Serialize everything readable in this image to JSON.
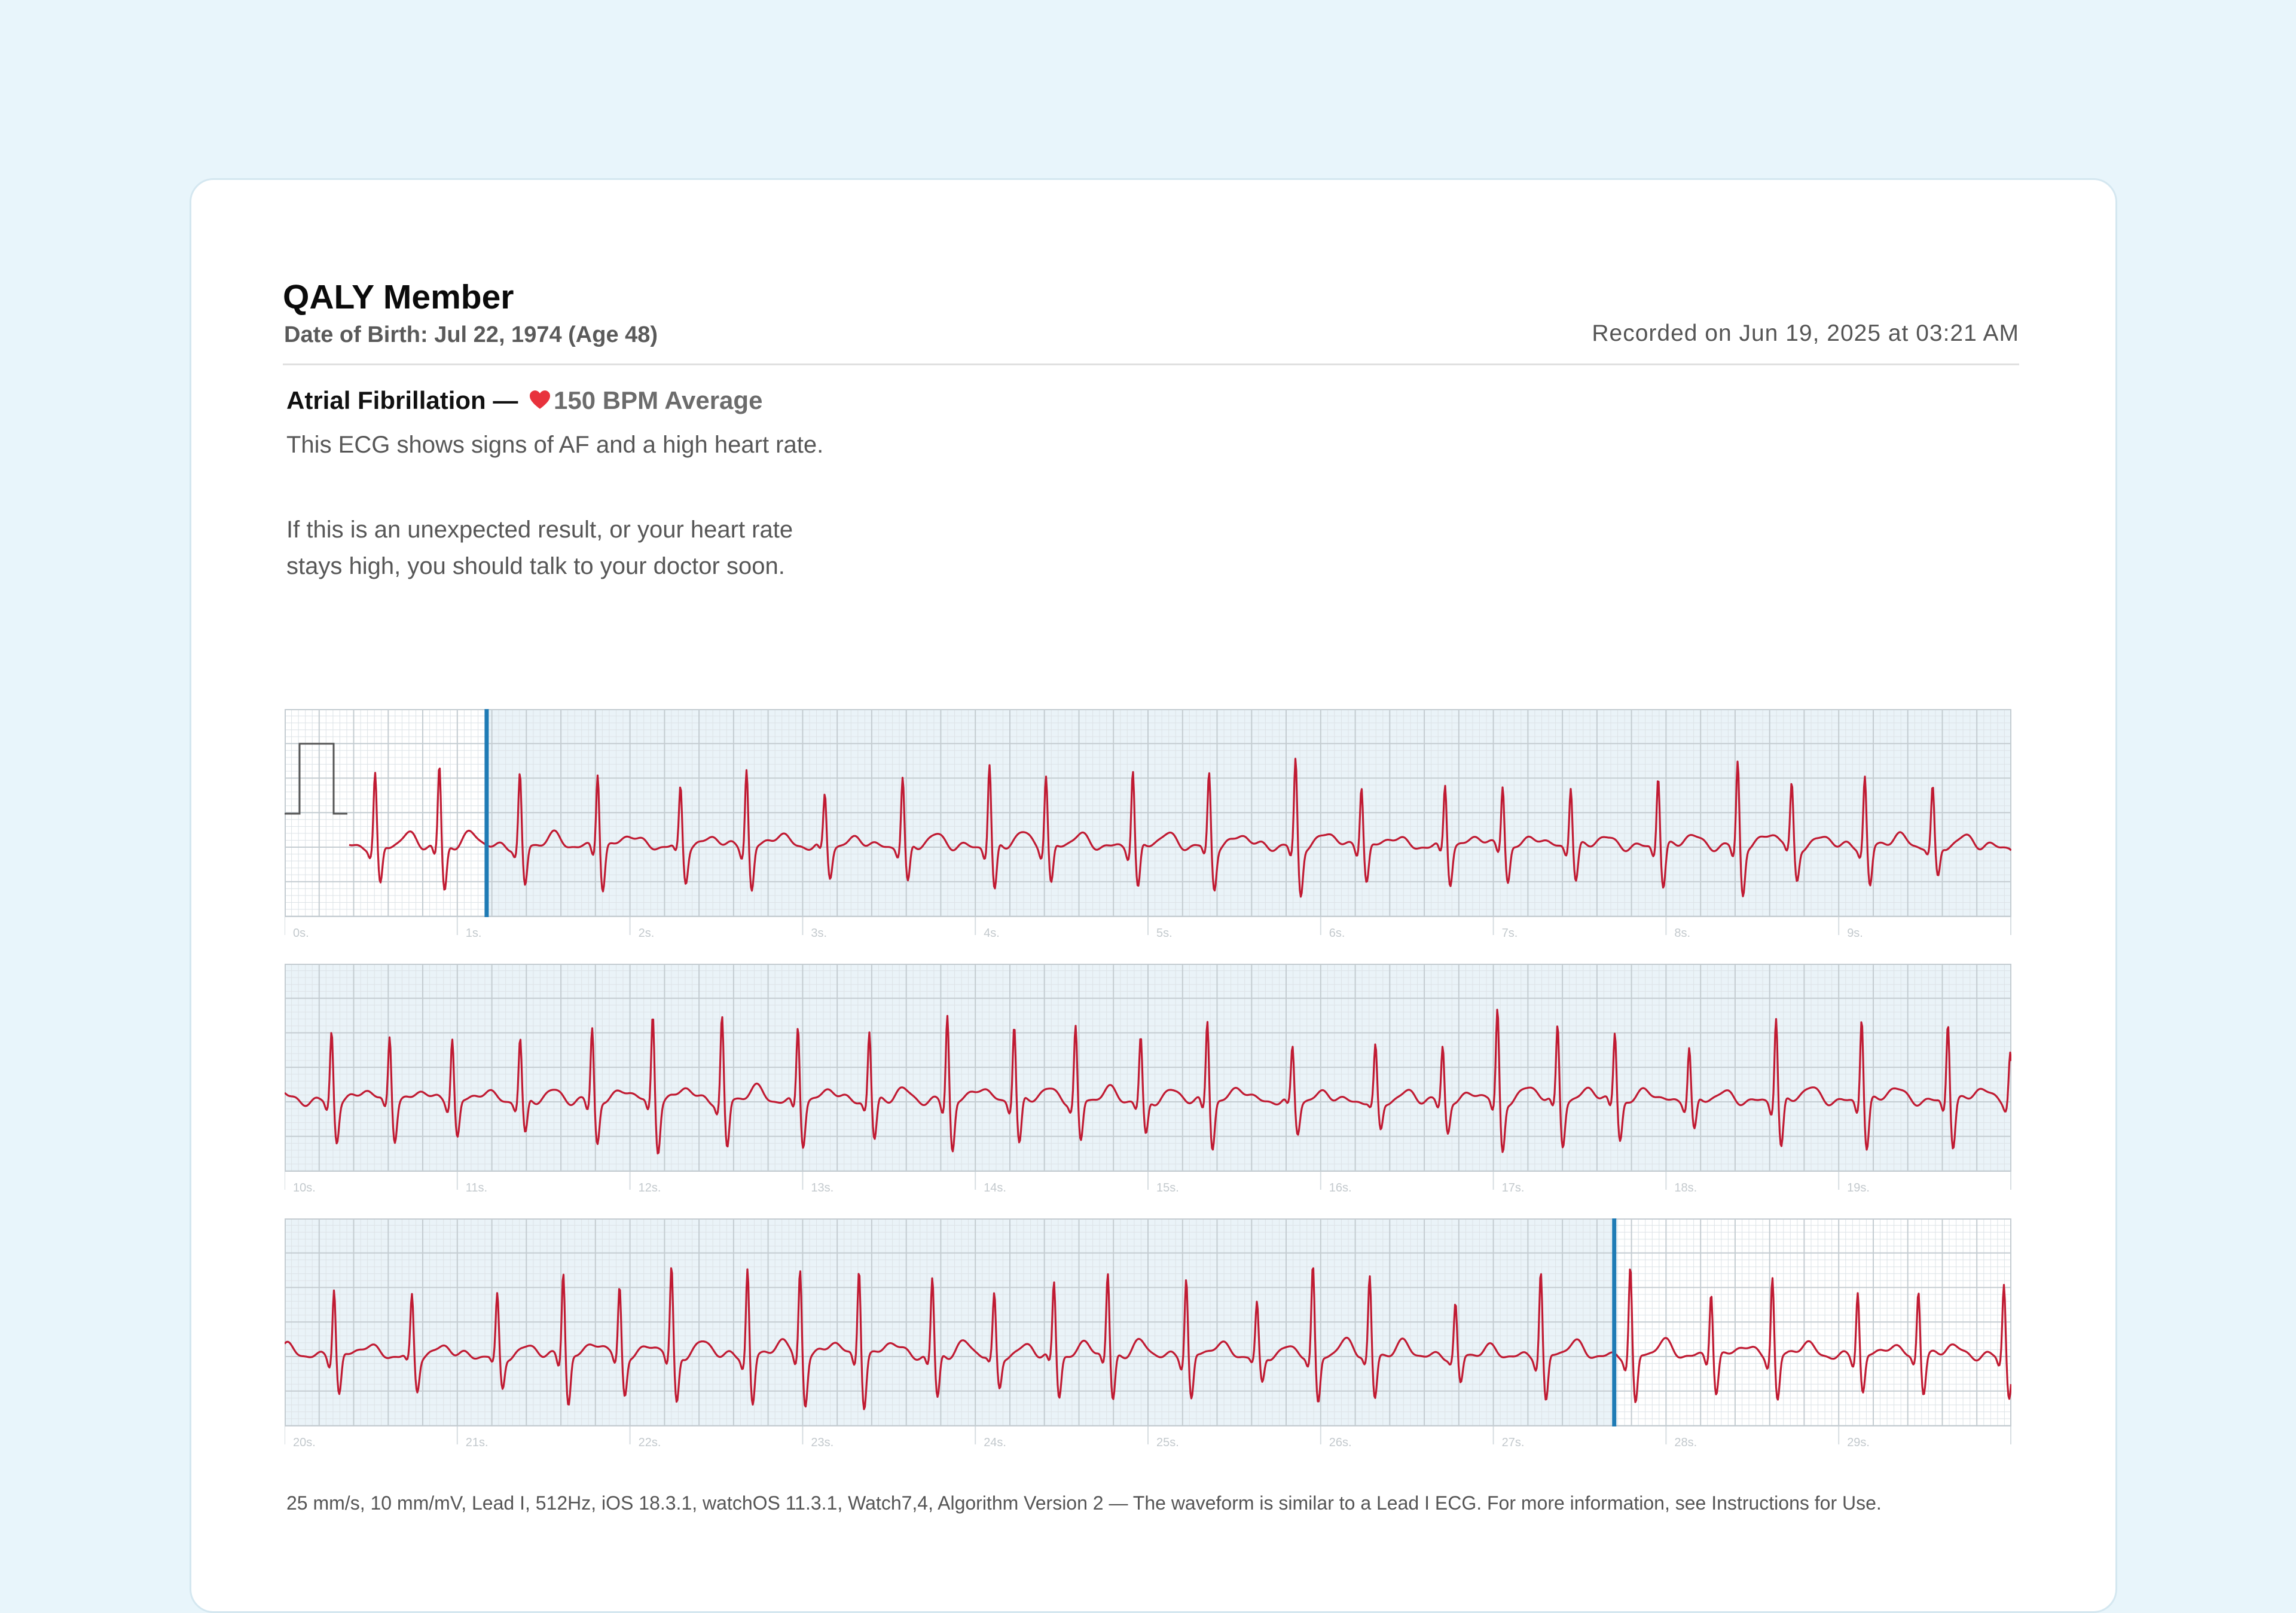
{
  "patient": {
    "name": "QALY Member",
    "dob": "Date of Birth: Jul 22, 1974 (Age 48)",
    "recorded": "Recorded on Jun 19, 2025 at 03:21 AM"
  },
  "result": {
    "classification": "Atrial Fibrillation",
    "separator": "—",
    "bpm": "150 BPM Average",
    "description_1": "This ECG shows signs of AF and a high heart rate.",
    "description_2": "If this is an unexpected result, or your heart rate stays high, you should talk to your doctor soon."
  },
  "strips": [
    {
      "ticks": [
        "0s.",
        "1s.",
        "2s.",
        "3s.",
        "4s.",
        "5s.",
        "6s.",
        "7s.",
        "8s.",
        "9s."
      ]
    },
    {
      "ticks": [
        "10s.",
        "11s.",
        "12s.",
        "13s.",
        "14s.",
        "15s.",
        "16s.",
        "17s.",
        "18s.",
        "19s."
      ]
    },
    {
      "ticks": [
        "20s.",
        "21s.",
        "22s.",
        "23s.",
        "24s.",
        "25s.",
        "26s.",
        "27s.",
        "28s.",
        "29s."
      ]
    }
  ],
  "analysis_window": {
    "start_s": 1.17,
    "end_s": 27.7
  },
  "colors": {
    "waveform": "#c01a32",
    "marker": "#1f7bb5",
    "heart": "#e8323c",
    "shaded_grid": "#eaf3f8"
  },
  "footer": "25 mm/s, 10 mm/mV, Lead I, 512Hz, iOS 18.3.1, watchOS 11.3.1, Watch7,4, Algorithm Version 2 — The waveform is similar to a Lead I ECG. For more information, see Instructions for Use."
}
